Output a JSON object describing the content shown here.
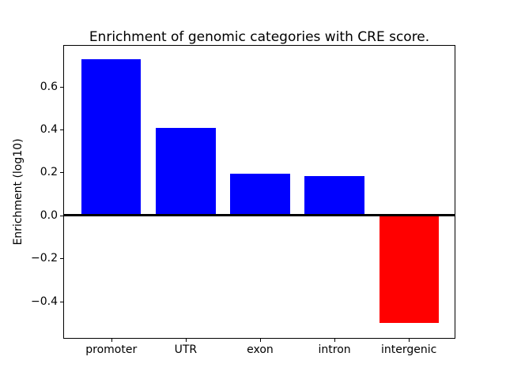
{
  "chart_data": {
    "type": "bar",
    "title": "Enrichment of genomic categories with CRE score.",
    "xlabel": "",
    "ylabel": "Enrichment (log10)",
    "categories": [
      "promoter",
      "UTR",
      "exon",
      "intron",
      "intergenic"
    ],
    "values": [
      0.728,
      0.406,
      0.195,
      0.183,
      -0.501
    ],
    "bar_colors": [
      "#0000ff",
      "#0000ff",
      "#0000ff",
      "#0000ff",
      "#ff0000"
    ],
    "positive_color": "#0000ff",
    "negative_color": "#ff0000",
    "bar_width": 0.8,
    "ylim": [
      -0.571,
      0.79
    ],
    "xlim": [
      -0.635,
      4.614
    ],
    "yticks": [
      0.6,
      0.4,
      0.2,
      0.0,
      -0.2,
      -0.4
    ],
    "ytick_labels": [
      "0.6",
      "0.4",
      "0.2",
      "0.0",
      "−0.2",
      "−0.4"
    ],
    "zero_line": true,
    "zero_line_color": "#000000",
    "grid": false,
    "legend": "none",
    "background_color": "#ffffff",
    "axis_color": "#000000"
  }
}
